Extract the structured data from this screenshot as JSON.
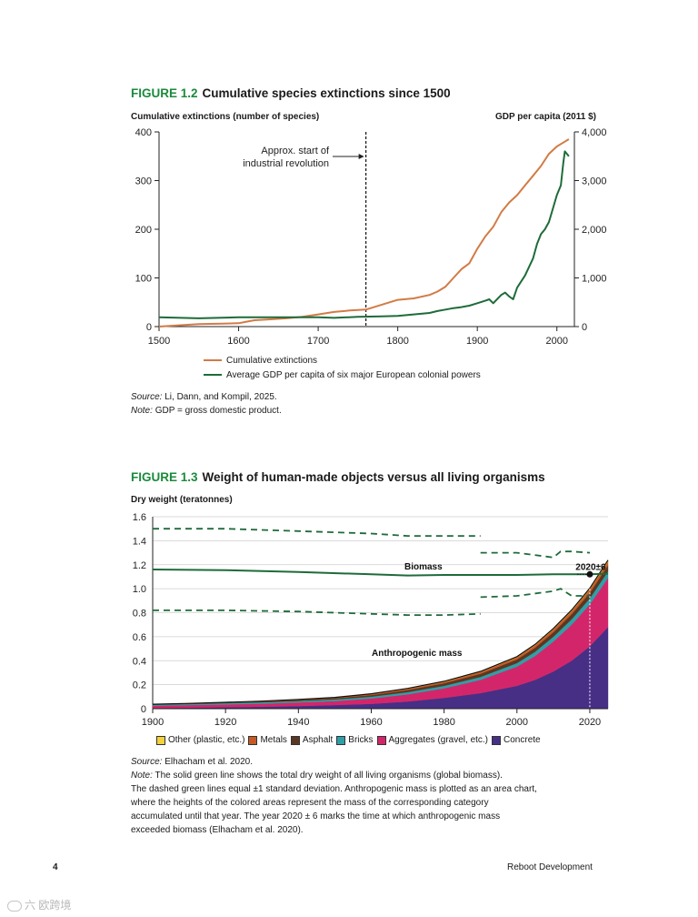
{
  "figure12": {
    "number": "FIGURE 1.2",
    "title": "Cumulative species extinctions since 1500",
    "left_axis_title": "Cumulative extinctions (number of species)",
    "right_axis_title": "GDP per capita (2011 $)",
    "annotation_line1": "Approx. start of",
    "annotation_line2": "industrial revolution",
    "legend": [
      "Cumulative extinctions",
      "Average GDP per capita of six major European colonial powers"
    ],
    "source_label": "Source:",
    "source_text": "Li, Dann, and Kompil, 2025.",
    "note_label": "Note:",
    "note_text": "GDP = gross domestic product."
  },
  "figure13": {
    "number": "FIGURE 1.3",
    "title": "Weight of human-made objects versus all living organisms",
    "axis_title": "Dry weight (teratonnes)",
    "biomass_label": "Biomass",
    "anthro_label": "Anthropogenic mass",
    "crossing_label": "2020±6",
    "legend": [
      "Other (plastic, etc.)",
      "Metals",
      "Asphalt",
      "Bricks",
      "Aggregates (gravel, etc.)",
      "Concrete"
    ],
    "source_label": "Source:",
    "source_text": "Elhacham et al. 2020.",
    "note_label": "Note:",
    "note_text": "The solid green line shows the total dry weight of all living organisms (global biomass).",
    "note_lines": [
      "The dashed green lines equal ±1 standard deviation. Anthropogenic mass is plotted as an area chart,",
      "where the heights of the colored areas represent the mass of the corresponding category",
      "accumulated until that year. The year 2020 ± 6 marks the time at which anthropogenic mass",
      "exceeded biomass (Elhacham et al. 2020)."
    ]
  },
  "footer": {
    "page_number": "4",
    "publication": "Reboot Development"
  },
  "watermark": "六 欧跨境",
  "colors": {
    "extinctions": "#d27b45",
    "gdp": "#1e6b3a",
    "green_title": "#1b8a3c",
    "other": "#f3d23b",
    "metals": "#c65a24",
    "asphalt": "#5a3723",
    "bricks": "#2f9fa7",
    "aggregates": "#d3266a",
    "concrete": "#472f86"
  },
  "chart_data": [
    {
      "type": "line",
      "title": "Cumulative species extinctions since 1500",
      "xlabel": "",
      "ylabel": "Cumulative extinctions (number of species)",
      "y2label": "GDP per capita (2011 $)",
      "xlim": [
        1500,
        2022
      ],
      "ylim": [
        0,
        400
      ],
      "y2lim": [
        0,
        4000
      ],
      "xticks": [
        1500,
        1600,
        1700,
        1800,
        1900,
        2000
      ],
      "yticks": [
        0,
        100,
        200,
        300,
        400
      ],
      "y2ticks": [
        "0",
        "1,000",
        "2,000",
        "3,000",
        "4,000"
      ],
      "vline_year": 1760,
      "series": [
        {
          "name": "Cumulative extinctions",
          "axis": "left",
          "color": "#d27b45",
          "x": [
            1500,
            1520,
            1550,
            1580,
            1600,
            1610,
            1620,
            1640,
            1660,
            1680,
            1700,
            1720,
            1740,
            1760,
            1780,
            1800,
            1820,
            1840,
            1850,
            1860,
            1870,
            1880,
            1890,
            1900,
            1910,
            1920,
            1930,
            1940,
            1950,
            1960,
            1970,
            1980,
            1990,
            2000,
            2010,
            2015
          ],
          "values": [
            0,
            2,
            5,
            6,
            7,
            10,
            13,
            15,
            17,
            20,
            25,
            30,
            33,
            35,
            45,
            55,
            58,
            65,
            72,
            82,
            100,
            118,
            130,
            160,
            185,
            205,
            235,
            255,
            270,
            290,
            310,
            330,
            355,
            370,
            380,
            385
          ]
        },
        {
          "name": "Average GDP per capita of six major European colonial powers",
          "axis": "right",
          "color": "#1e6b3a",
          "x": [
            1500,
            1550,
            1600,
            1650,
            1700,
            1720,
            1750,
            1780,
            1800,
            1820,
            1840,
            1850,
            1860,
            1870,
            1880,
            1890,
            1900,
            1910,
            1915,
            1920,
            1930,
            1935,
            1940,
            1945,
            1950,
            1960,
            1970,
            1975,
            1980,
            1985,
            1990,
            2000,
            2005,
            2008,
            2010,
            2015
          ],
          "values": [
            190,
            170,
            190,
            190,
            190,
            180,
            200,
            210,
            220,
            250,
            280,
            320,
            350,
            380,
            400,
            430,
            480,
            530,
            560,
            480,
            650,
            700,
            620,
            560,
            800,
            1050,
            1400,
            1700,
            1900,
            2000,
            2150,
            2700,
            2900,
            3350,
            3600,
            3500
          ]
        }
      ],
      "legend": [
        "Cumulative extinctions",
        "Average GDP per capita of six major European colonial powers"
      ]
    },
    {
      "type": "area",
      "title": "Weight of human-made objects versus all living organisms",
      "xlabel": "",
      "ylabel": "Dry weight (teratonnes)",
      "xlim": [
        1900,
        2025
      ],
      "ylim": [
        0,
        1.6
      ],
      "xticks": [
        1900,
        1920,
        1940,
        1960,
        1980,
        2000,
        2020
      ],
      "yticks": [
        "0",
        "0.2",
        "0.4",
        "0.6",
        "0.8",
        "1.0",
        "1.2",
        "1.4",
        "1.6"
      ],
      "x": [
        1900,
        1910,
        1920,
        1930,
        1940,
        1950,
        1960,
        1970,
        1980,
        1990,
        2000,
        2005,
        2010,
        2015,
        2020,
        2025
      ],
      "series": [
        {
          "name": "Concrete",
          "color": "#472f86",
          "values": [
            0.005,
            0.008,
            0.012,
            0.016,
            0.022,
            0.03,
            0.04,
            0.06,
            0.09,
            0.13,
            0.19,
            0.24,
            0.31,
            0.4,
            0.52,
            0.68
          ]
        },
        {
          "name": "Aggregates (gravel, etc.)",
          "color": "#d3266a",
          "values": [
            0.02,
            0.022,
            0.024,
            0.026,
            0.03,
            0.034,
            0.045,
            0.06,
            0.08,
            0.11,
            0.16,
            0.2,
            0.25,
            0.3,
            0.35,
            0.41
          ]
        },
        {
          "name": "Bricks",
          "color": "#2f9fa7",
          "values": [
            0.008,
            0.009,
            0.01,
            0.011,
            0.012,
            0.013,
            0.015,
            0.018,
            0.02,
            0.025,
            0.03,
            0.035,
            0.04,
            0.045,
            0.05,
            0.055
          ]
        },
        {
          "name": "Asphalt",
          "color": "#5a3723",
          "values": [
            0.002,
            0.003,
            0.004,
            0.006,
            0.008,
            0.01,
            0.014,
            0.018,
            0.022,
            0.026,
            0.03,
            0.034,
            0.038,
            0.042,
            0.046,
            0.05
          ]
        },
        {
          "name": "Metals",
          "color": "#c65a24",
          "values": [
            0.002,
            0.002,
            0.003,
            0.004,
            0.005,
            0.006,
            0.008,
            0.01,
            0.012,
            0.015,
            0.018,
            0.02,
            0.023,
            0.026,
            0.029,
            0.032
          ]
        },
        {
          "name": "Other (plastic, etc.)",
          "color": "#f3d23b",
          "values": [
            0.0,
            0.0,
            0.0,
            0.0,
            0.0,
            0.001,
            0.002,
            0.003,
            0.004,
            0.005,
            0.006,
            0.007,
            0.008,
            0.009,
            0.01,
            0.011
          ]
        }
      ],
      "biomass": {
        "x": [
          1900,
          1920,
          1940,
          1960,
          1970,
          1980,
          1990,
          2000,
          2010,
          2020,
          2025
        ],
        "values": [
          1.16,
          1.155,
          1.14,
          1.12,
          1.11,
          1.115,
          1.115,
          1.115,
          1.12,
          1.12,
          1.125
        ],
        "upper": {
          "x": [
            1900,
            1920,
            1940,
            1960,
            1970,
            1980,
            1990
          ],
          "values": [
            1.5,
            1.5,
            1.48,
            1.46,
            1.44,
            1.44,
            1.44
          ]
        },
        "lower": {
          "x": [
            1900,
            1920,
            1940,
            1960,
            1970,
            1980,
            1990
          ],
          "values": [
            0.82,
            0.82,
            0.81,
            0.79,
            0.78,
            0.78,
            0.79
          ]
        },
        "upper_recent": {
          "x": [
            1990,
            2000,
            2010,
            2012,
            2015,
            2020
          ],
          "values": [
            1.3,
            1.3,
            1.26,
            1.31,
            1.31,
            1.3
          ]
        },
        "lower_recent": {
          "x": [
            1990,
            2000,
            2010,
            2012,
            2015,
            2020
          ],
          "values": [
            0.93,
            0.94,
            0.98,
            1.0,
            0.94,
            0.94
          ]
        }
      },
      "crossing_year": 2020,
      "legend": [
        "Other (plastic, etc.)",
        "Metals",
        "Asphalt",
        "Bricks",
        "Aggregates (gravel, etc.)",
        "Concrete"
      ]
    }
  ]
}
